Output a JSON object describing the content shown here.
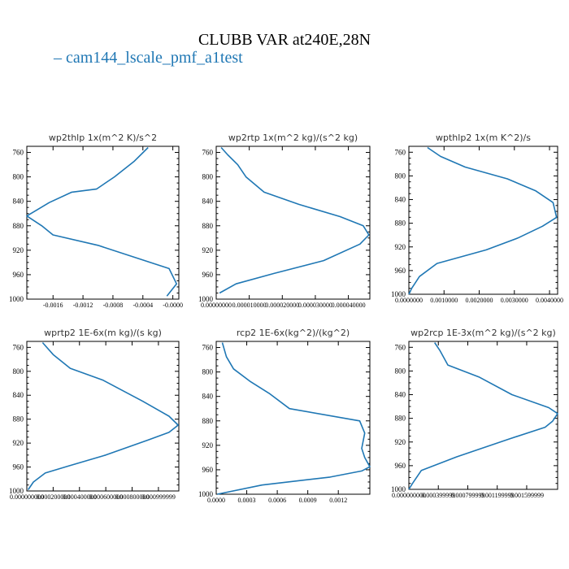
{
  "figure": {
    "title": "CLUBB VAR at240E,28N",
    "legend": "– cam144_lscale_pmf_a1test",
    "line_color": "#1f77b4"
  },
  "chart_data": [
    {
      "type": "line",
      "title": "wp2thlp  1x(m^2 K)/s^2",
      "xlim": [
        -0.00195,
        8e-05
      ],
      "ylim": [
        1000,
        750
      ],
      "yticks": [
        "760",
        "800",
        "840",
        "880",
        "920",
        "960",
        "1000"
      ],
      "xticks": [
        {
          "v": -0.0016,
          "label": "-0.0016"
        },
        {
          "v": -0.0012,
          "label": "-0.0012"
        },
        {
          "v": -0.0008,
          "label": "-0.0008"
        },
        {
          "v": -0.0004,
          "label": "-0.0004"
        },
        {
          "v": 0.0,
          "label": "-0.0000"
        }
      ],
      "series": [
        {
          "x": [
            -0.00033,
            -0.00052,
            -0.00078,
            -0.00102,
            -0.00135,
            -0.00165,
            -0.00195,
            -0.00175,
            -0.0016,
            -0.001,
            -0.0003,
            -5e-05,
            5e-05,
            -8e-05
          ],
          "y": [
            752,
            775,
            800,
            820,
            825,
            842,
            864,
            880,
            895,
            912,
            940,
            950,
            975,
            995
          ]
        }
      ]
    },
    {
      "type": "line",
      "title": "wp2rtp  1x(m^2 kg)/(s^2 kg)",
      "xlim": [
        0.0,
        4.65e-05
      ],
      "ylim": [
        1000,
        750
      ],
      "yticks": [
        "760",
        "800",
        "840",
        "880",
        "920",
        "960",
        "1000"
      ],
      "xticks": [
        {
          "v": 0.0,
          "label": "0.00000000"
        },
        {
          "v": 1e-05,
          "label": "0.000010000"
        },
        {
          "v": 2e-05,
          "label": "0.000020000"
        },
        {
          "v": 3e-05,
          "label": "0.000030000"
        },
        {
          "v": 4e-05,
          "label": "0.000040000"
        }
      ],
      "series": [
        {
          "x": [
            1.5e-06,
            3.5e-06,
            6.5e-06,
            9e-06,
            1.45e-05,
            2.5e-05,
            3.75e-05,
            4.45e-05,
            4.62e-05,
            4.35e-05,
            3.25e-05,
            1.75e-05,
            6e-06,
            1e-06
          ],
          "y": [
            752,
            764,
            780,
            800,
            825,
            845,
            865,
            880,
            895,
            910,
            937,
            958,
            975,
            990
          ]
        }
      ]
    },
    {
      "type": "line",
      "title": "wpthlp2  1x(m K^2)/s",
      "xlim": [
        0.0,
        0.00423
      ],
      "ylim": [
        1000,
        750
      ],
      "yticks": [
        "760",
        "800",
        "840",
        "880",
        "920",
        "960",
        "1000"
      ],
      "xticks": [
        {
          "v": 0.0,
          "label": "0.0000000"
        },
        {
          "v": 0.001,
          "label": "0.0010000"
        },
        {
          "v": 0.002,
          "label": "0.0020000"
        },
        {
          "v": 0.003,
          "label": "0.0030000"
        },
        {
          "v": 0.004,
          "label": "0.0040000"
        }
      ],
      "series": [
        {
          "x": [
            0.00053,
            0.0009,
            0.0016,
            0.0028,
            0.0036,
            0.0041,
            0.0042,
            0.0038,
            0.0031,
            0.0022,
            0.0008,
            0.0003,
            8e-05,
            0.0
          ],
          "y": [
            752,
            767,
            785,
            805,
            825,
            845,
            870,
            885,
            905,
            925,
            948,
            970,
            990,
            1000
          ]
        }
      ]
    },
    {
      "type": "line",
      "title": "wprtp2  1E-6x(m kg)/(s kg)",
      "xlim": [
        0.0,
        0.001155
      ],
      "ylim": [
        1000,
        750
      ],
      "yticks": [
        "760",
        "800",
        "840",
        "880",
        "920",
        "960",
        "1000"
      ],
      "xticks": [
        {
          "v": 0.0,
          "label": "0.000000000"
        },
        {
          "v": 0.0002,
          "label": "0.000200000"
        },
        {
          "v": 0.0004,
          "label": "0.000400000"
        },
        {
          "v": 0.0006,
          "label": "0.000600000"
        },
        {
          "v": 0.0008,
          "label": "0.000800000"
        },
        {
          "v": 0.001,
          "label": "0.000999999"
        }
      ],
      "series": [
        {
          "x": [
            0.00012,
            0.0002,
            0.00033,
            0.00058,
            0.00088,
            0.00108,
            0.00115,
            0.00108,
            0.00092,
            0.0006,
            0.00032,
            0.00014,
            5e-05,
            1e-05
          ],
          "y": [
            752,
            772,
            795,
            815,
            850,
            875,
            890,
            902,
            915,
            940,
            958,
            970,
            985,
            998
          ]
        }
      ]
    },
    {
      "type": "line",
      "title": "rcp2  1E-6x(kg^2)/(kg^2)",
      "xlim": [
        0.0,
        0.00151
      ],
      "ylim": [
        1000,
        750
      ],
      "yticks": [
        "760",
        "800",
        "840",
        "880",
        "920",
        "960",
        "1000"
      ],
      "xticks": [
        {
          "v": 0.0,
          "label": "0.0000"
        },
        {
          "v": 0.0003,
          "label": "0.0003"
        },
        {
          "v": 0.0006,
          "label": "0.0006"
        },
        {
          "v": 0.0009,
          "label": "0.0009"
        },
        {
          "v": 0.0012,
          "label": "0.0012"
        }
      ],
      "series": [
        {
          "x": [
            6e-05,
            0.0001,
            0.00017,
            0.00033,
            0.00052,
            0.00072,
            0.00141,
            0.00146,
            0.00143,
            0.00146,
            0.00151,
            0.00143,
            0.00112,
            0.00045,
            1e-05
          ],
          "y": [
            752,
            775,
            795,
            815,
            835,
            860,
            880,
            900,
            925,
            940,
            955,
            962,
            972,
            985,
            1000
          ]
        }
      ]
    },
    {
      "type": "line",
      "title": "wp2rcp  1E-3x(m^2 kg)/(s^2 kg)",
      "xlim": [
        0.0,
        0.00202
      ],
      "ylim": [
        1000,
        750
      ],
      "yticks": [
        "760",
        "800",
        "840",
        "880",
        "920",
        "960",
        "1000"
      ],
      "xticks": [
        {
          "v": 0.0,
          "label": "0.000000000"
        },
        {
          "v": 0.0004,
          "label": "0.000399999"
        },
        {
          "v": 0.0008,
          "label": "0.000799999"
        },
        {
          "v": 0.0012,
          "label": "0.001199999"
        },
        {
          "v": 0.0016,
          "label": "0.001599999"
        }
      ],
      "series": [
        {
          "x": [
            0.00035,
            0.00042,
            0.00053,
            0.00095,
            0.0014,
            0.0019,
            0.00202,
            0.00195,
            0.00185,
            0.00136,
            0.00065,
            0.00017,
            5e-05,
            0.0
          ],
          "y": [
            752,
            765,
            790,
            810,
            840,
            862,
            872,
            885,
            895,
            915,
            945,
            968,
            990,
            1000
          ]
        }
      ]
    }
  ]
}
